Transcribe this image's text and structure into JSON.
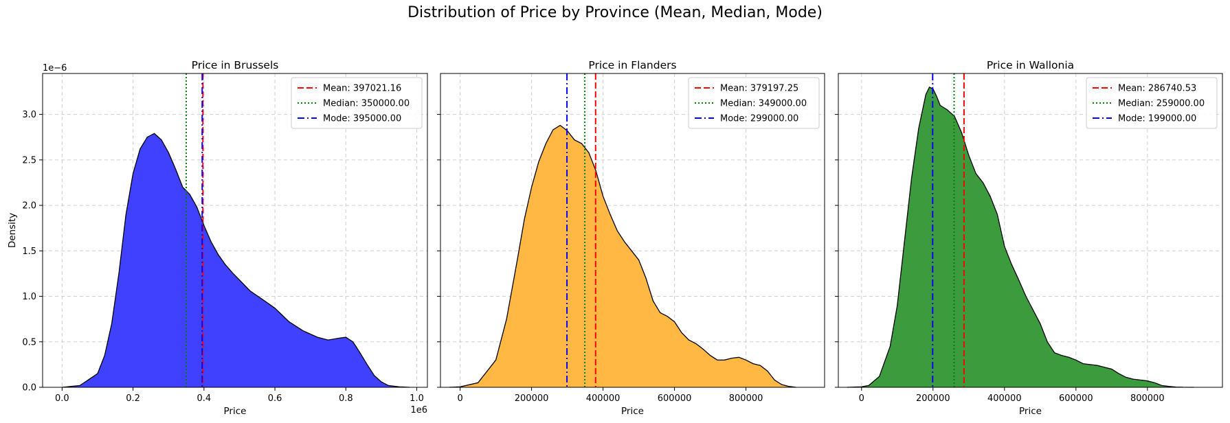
{
  "figure": {
    "title": "Distribution of Price by Province (Mean, Median, Mode)"
  },
  "chart_data": [
    {
      "type": "area",
      "title": "Price in Brussels",
      "xlabel": "Price",
      "ylabel": "Density",
      "x_offset_label": "1e6",
      "y_offset_label": "1e−6",
      "xlim": [
        -0.055,
        1.03
      ],
      "ylim": [
        0,
        3.45
      ],
      "xticks": [
        0.0,
        0.2,
        0.4,
        0.6,
        0.8,
        1.0
      ],
      "xtick_labels": [
        "0.0",
        "0.2",
        "0.4",
        "0.6",
        "0.8",
        "1.0"
      ],
      "yticks": [
        0.0,
        0.5,
        1.0,
        1.5,
        2.0,
        2.5,
        3.0
      ],
      "ytick_labels": [
        "0.0",
        "0.5",
        "1.0",
        "1.5",
        "2.0",
        "2.5",
        "3.0"
      ],
      "grid": true,
      "fill_color": "#4040ff",
      "x": [
        0.0,
        0.05,
        0.1,
        0.12,
        0.14,
        0.16,
        0.18,
        0.2,
        0.22,
        0.24,
        0.26,
        0.28,
        0.3,
        0.32,
        0.34,
        0.36,
        0.38,
        0.4,
        0.42,
        0.44,
        0.46,
        0.48,
        0.5,
        0.53,
        0.56,
        0.6,
        0.64,
        0.68,
        0.72,
        0.75,
        0.78,
        0.8,
        0.82,
        0.84,
        0.86,
        0.88,
        0.9,
        0.92,
        0.95,
        0.98
      ],
      "y": [
        0.0,
        0.02,
        0.15,
        0.35,
        0.7,
        1.25,
        1.9,
        2.35,
        2.62,
        2.75,
        2.79,
        2.72,
        2.58,
        2.4,
        2.2,
        2.12,
        1.98,
        1.78,
        1.6,
        1.46,
        1.35,
        1.26,
        1.18,
        1.06,
        0.98,
        0.87,
        0.72,
        0.62,
        0.55,
        0.52,
        0.54,
        0.55,
        0.5,
        0.38,
        0.25,
        0.13,
        0.06,
        0.02,
        0.005,
        0.0
      ],
      "lines": [
        {
          "label": "Mean: 397021.16",
          "x": 0.397021,
          "color": "#ff0000",
          "style": "dashed"
        },
        {
          "label": "Median: 350000.00",
          "x": 0.35,
          "color": "#008000",
          "style": "dotted"
        },
        {
          "label": "Mode: 395000.00",
          "x": 0.395,
          "color": "#0000ff",
          "style": "dashdot"
        }
      ],
      "legend": "top-right"
    },
    {
      "type": "area",
      "title": "Price in Flanders",
      "xlabel": "Price",
      "ylabel": "",
      "x_offset_label": "",
      "y_offset_label": "",
      "xlim": [
        -55000,
        1020000
      ],
      "ylim": [
        0,
        3.45
      ],
      "xticks": [
        0,
        200000,
        400000,
        600000,
        800000
      ],
      "xtick_labels": [
        "0",
        "200000",
        "400000",
        "600000",
        "800000"
      ],
      "yticks": [
        0.0,
        0.5,
        1.0,
        1.5,
        2.0,
        2.5,
        3.0
      ],
      "ytick_labels": [],
      "grid": true,
      "fill_color": "#ffb843",
      "x": [
        -30000,
        0,
        50000,
        100000,
        130000,
        160000,
        180000,
        200000,
        220000,
        240000,
        260000,
        280000,
        300000,
        320000,
        340000,
        360000,
        380000,
        400000,
        420000,
        440000,
        460000,
        480000,
        500000,
        520000,
        540000,
        560000,
        580000,
        600000,
        620000,
        640000,
        660000,
        680000,
        700000,
        720000,
        740000,
        760000,
        780000,
        800000,
        820000,
        840000,
        860000,
        880000,
        900000,
        920000,
        940000
      ],
      "y": [
        0.0,
        0.005,
        0.05,
        0.3,
        0.75,
        1.4,
        1.85,
        2.2,
        2.48,
        2.68,
        2.83,
        2.88,
        2.82,
        2.72,
        2.68,
        2.58,
        2.38,
        2.1,
        1.9,
        1.72,
        1.6,
        1.5,
        1.4,
        1.2,
        0.95,
        0.82,
        0.78,
        0.72,
        0.6,
        0.52,
        0.48,
        0.42,
        0.35,
        0.3,
        0.3,
        0.32,
        0.33,
        0.3,
        0.26,
        0.24,
        0.18,
        0.08,
        0.03,
        0.01,
        0.0
      ],
      "lines": [
        {
          "label": "Mean: 379197.25",
          "x": 379197.25,
          "color": "#ff0000",
          "style": "dashed"
        },
        {
          "label": "Median: 349000.00",
          "x": 349000,
          "color": "#008000",
          "style": "dotted"
        },
        {
          "label": "Mode: 299000.00",
          "x": 299000,
          "color": "#0000ff",
          "style": "dashdot"
        }
      ],
      "legend": "top-right"
    },
    {
      "type": "area",
      "title": "Price in Wallonia",
      "xlabel": "Price",
      "ylabel": "",
      "x_offset_label": "",
      "y_offset_label": "",
      "xlim": [
        -65000,
        1010000
      ],
      "ylim": [
        0,
        3.45
      ],
      "xticks": [
        0,
        200000,
        400000,
        600000,
        800000
      ],
      "xtick_labels": [
        "0",
        "200000",
        "400000",
        "600000",
        "800000"
      ],
      "yticks": [
        0.0,
        0.5,
        1.0,
        1.5,
        2.0,
        2.5,
        3.0
      ],
      "ytick_labels": [],
      "grid": true,
      "fill_color": "#3c9b3c",
      "x": [
        -40000,
        0,
        20000,
        50000,
        80000,
        100000,
        120000,
        140000,
        160000,
        180000,
        190000,
        200000,
        210000,
        220000,
        240000,
        260000,
        280000,
        300000,
        320000,
        340000,
        360000,
        380000,
        400000,
        420000,
        440000,
        460000,
        480000,
        500000,
        520000,
        540000,
        560000,
        580000,
        600000,
        620000,
        640000,
        660000,
        680000,
        700000,
        720000,
        740000,
        760000,
        780000,
        800000,
        820000,
        840000,
        860000,
        880000,
        900000,
        930000
      ],
      "y": [
        0.0,
        0.005,
        0.02,
        0.12,
        0.45,
        0.9,
        1.6,
        2.3,
        2.85,
        3.22,
        3.3,
        3.28,
        3.2,
        3.1,
        3.05,
        2.98,
        2.8,
        2.55,
        2.35,
        2.25,
        2.1,
        1.9,
        1.55,
        1.35,
        1.18,
        1.0,
        0.85,
        0.7,
        0.5,
        0.38,
        0.35,
        0.33,
        0.3,
        0.26,
        0.25,
        0.24,
        0.22,
        0.2,
        0.15,
        0.11,
        0.09,
        0.08,
        0.07,
        0.05,
        0.02,
        0.01,
        0.003,
        0.001,
        0.0
      ],
      "lines": [
        {
          "label": "Mean: 286740.53",
          "x": 286740.53,
          "color": "#ff0000",
          "style": "dashed"
        },
        {
          "label": "Median: 259000.00",
          "x": 259000,
          "color": "#008000",
          "style": "dotted"
        },
        {
          "label": "Mode: 199000.00",
          "x": 199000,
          "color": "#0000ff",
          "style": "dashdot"
        }
      ],
      "legend": "top-right"
    }
  ]
}
